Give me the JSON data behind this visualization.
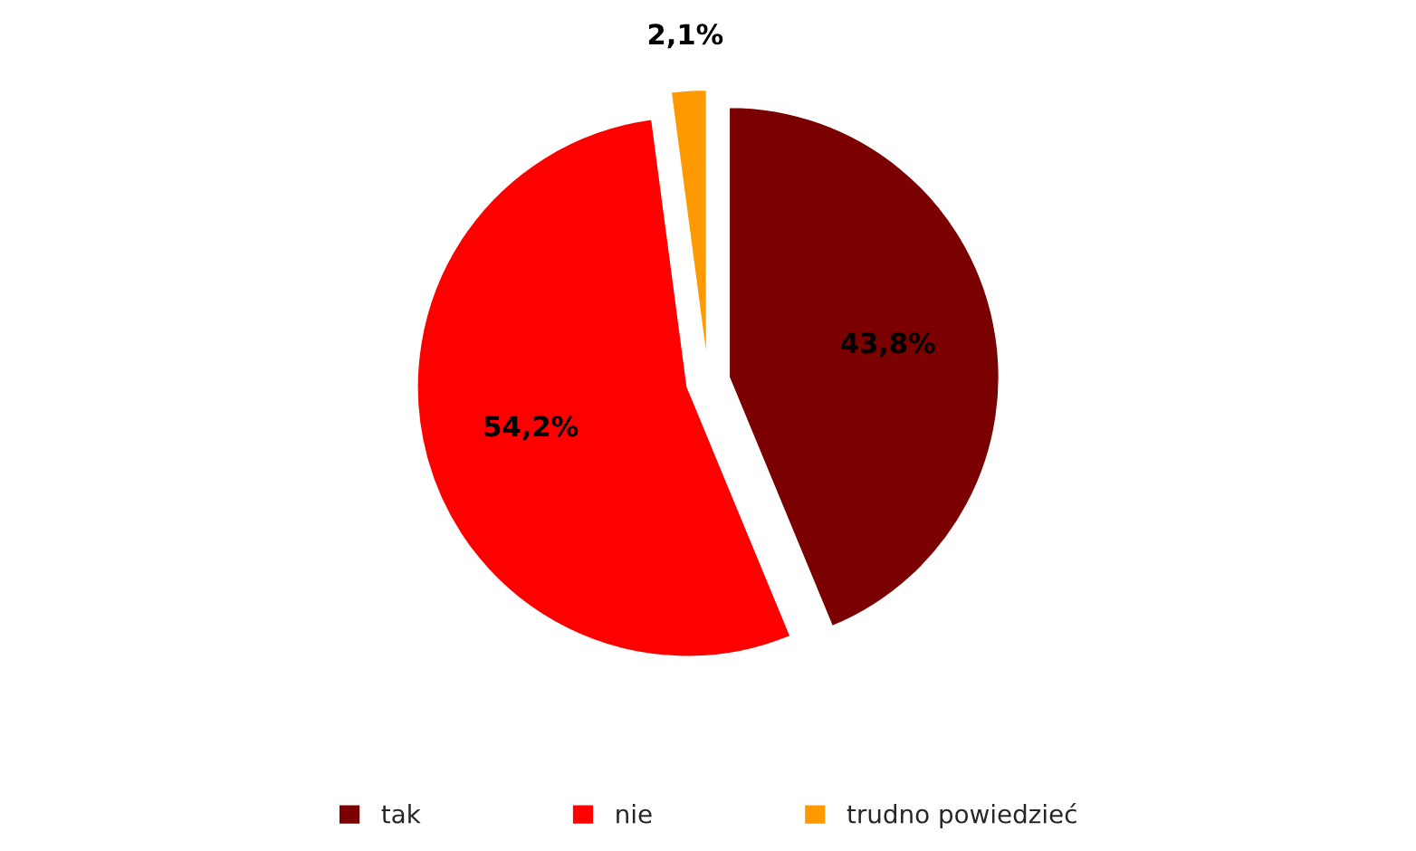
{
  "chart_data": {
    "type": "pie",
    "categories": [
      "tak",
      "nie",
      "trudno powiedzieć"
    ],
    "values": [
      43.8,
      54.2,
      2.1
    ],
    "colors": [
      "#7b0000",
      "#ff0000",
      "#ff9900"
    ],
    "value_labels": [
      "43,8%",
      "54,2%",
      "2,1%"
    ],
    "legend": "bottom"
  }
}
